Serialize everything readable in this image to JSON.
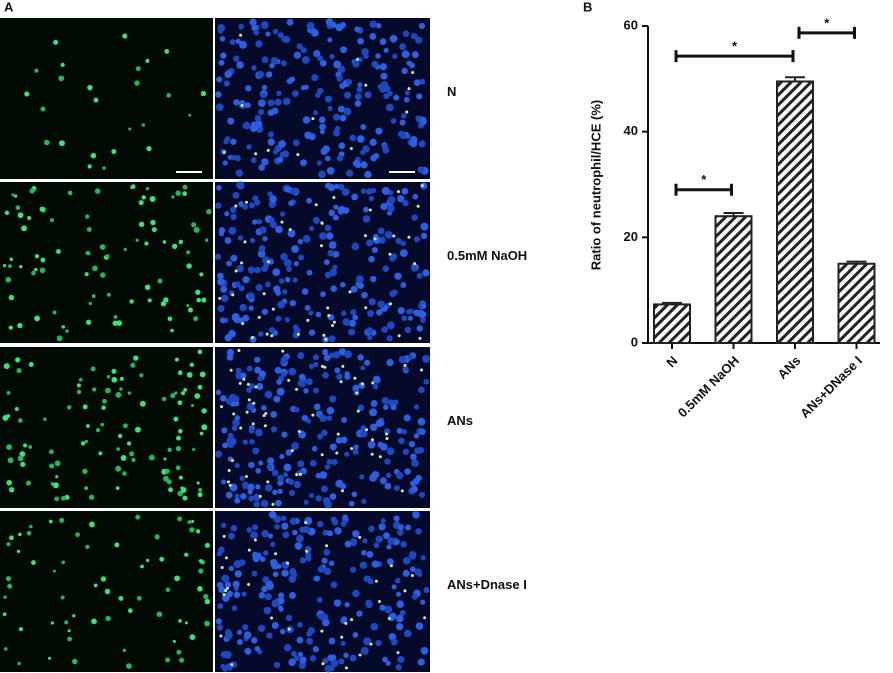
{
  "panel_a": {
    "label": "A",
    "rows": [
      "N",
      "0.5mM NaOH",
      "ANs",
      "ANs+Dnase I"
    ]
  },
  "chart_data": {
    "type": "bar",
    "panel_label": "B",
    "y_label": "Ratio of neutrophil/HCE (%)",
    "categories": [
      "N",
      "0.5mM NaOH",
      "ANs",
      "ANs+DNase I"
    ],
    "values": [
      7.3,
      24,
      49.5,
      15
    ],
    "errors": [
      0.3,
      0.6,
      0.8,
      0.4
    ],
    "color": "#222222",
    "ylim": [
      0,
      60
    ],
    "yticks": [
      0,
      20,
      40,
      60
    ],
    "significance": [
      {
        "from": 0,
        "to": 1,
        "y": 29,
        "label": "*"
      },
      {
        "from": 0,
        "to": 2,
        "y": 54.3,
        "label": "*"
      },
      {
        "from": 2,
        "to": 3,
        "y": 58.7,
        "label": "*"
      }
    ]
  }
}
